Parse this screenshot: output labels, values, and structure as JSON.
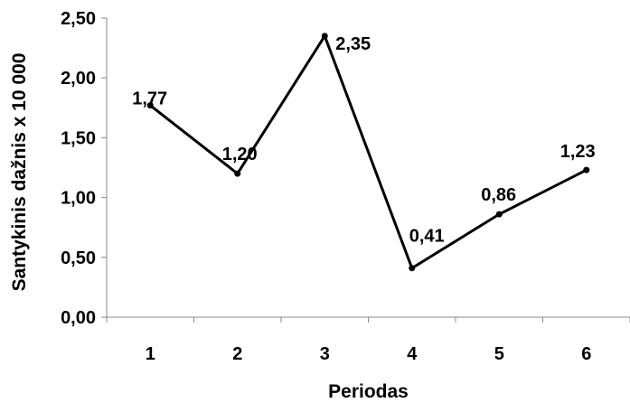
{
  "chart_data": {
    "type": "line",
    "categories": [
      "1",
      "2",
      "3",
      "4",
      "5",
      "6"
    ],
    "series": [
      {
        "values": [
          1.77,
          1.2,
          2.35,
          0.41,
          0.86,
          1.23
        ],
        "data_labels": [
          "1,77",
          "1,20",
          "2,35",
          "0,41",
          "0,86",
          "1,23"
        ]
      }
    ],
    "xlabel": "Periodas",
    "ylabel": "Santykinis dažnis x 10 000",
    "ylim": [
      0,
      2.5
    ],
    "yticks": [
      0,
      0.5,
      1.0,
      1.5,
      2.0,
      2.5
    ],
    "ytick_labels": [
      "0,00",
      "0,50",
      "1,00",
      "1,50",
      "2,00",
      "2,50"
    ],
    "grid": false,
    "line_color": "#000000"
  }
}
